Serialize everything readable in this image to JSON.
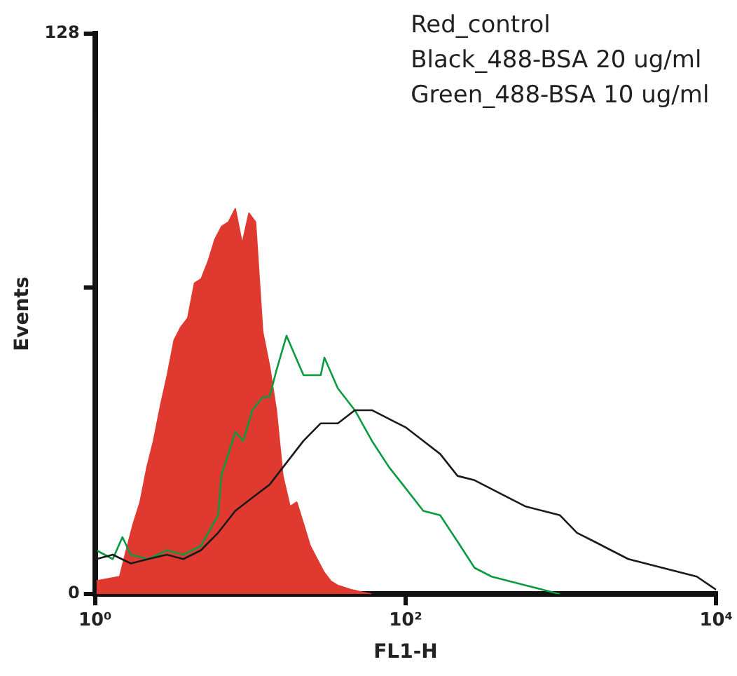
{
  "chart_data": {
    "type": "line",
    "xlabel": "FL1-H",
    "ylabel": "Events",
    "log": "x",
    "grid": false,
    "marker": "none",
    "xlim": [
      1,
      10000
    ],
    "xticks": [
      {
        "value": 1,
        "label": "10⁰"
      },
      {
        "value": 100,
        "label": "10²"
      },
      {
        "value": 10000,
        "label": "10⁴"
      }
    ],
    "ylim": [
      0,
      128
    ],
    "yticks": [
      0,
      {
        "value": 70,
        "label": null
      },
      128
    ],
    "annotations": [
      "Red_control",
      "Black_488-BSA 20 ug/ml",
      "Green_488-BSA 10 ug/ml"
    ],
    "series": [
      {
        "type": "area",
        "color": "#e03a30",
        "x": [
          1.02,
          1.44,
          1.59,
          1.76,
          1.95,
          2.16,
          2.38,
          2.64,
          2.92,
          3.23,
          3.57,
          3.95,
          4.37,
          4.83,
          5.35,
          5.91,
          6.54,
          7.24,
          8.0,
          8.86,
          9.8,
          10.8,
          12.0,
          13.3,
          14.7,
          16.2,
          18.0,
          19.9,
          22.0,
          24.3,
          26.9,
          29.8,
          32.9,
          36.4,
          44.6,
          60.2
        ],
        "values": [
          3,
          4,
          10,
          16,
          21,
          29,
          35,
          43,
          50,
          58,
          61,
          63,
          71,
          72,
          76,
          81,
          84,
          85,
          88,
          80,
          87,
          85,
          60,
          52,
          42,
          27,
          20,
          21,
          16,
          11,
          8,
          5,
          3,
          2,
          1,
          0
        ]
      },
      {
        "color": "#1a1a1a",
        "x": [
          1,
          1.02,
          1.3,
          1.7,
          2.2,
          2.9,
          3.7,
          4.8,
          6.2,
          8.0,
          10.3,
          13.3,
          17.1,
          22.0,
          28.4,
          36.6,
          47.1,
          60.7,
          78.2,
          101,
          130,
          167,
          216,
          278,
          358,
          461,
          594,
          766,
          987,
          1270,
          1640,
          2110,
          2720,
          4520,
          7510,
          10000
        ],
        "values": [
          110,
          8,
          9,
          7,
          8,
          9,
          8,
          10,
          14,
          19,
          22,
          25,
          30,
          35,
          39,
          39,
          42,
          42,
          40,
          38,
          35,
          32,
          27,
          26,
          24,
          22,
          20,
          19,
          18,
          14,
          12,
          10,
          8,
          6,
          4,
          1
        ]
      },
      {
        "color": "#0a9a40",
        "x": [
          1.02,
          1.3,
          1.5,
          1.7,
          2.2,
          2.9,
          3.7,
          4.8,
          6.2,
          6.5,
          8.0,
          9.0,
          10.3,
          12.0,
          13.3,
          14.7,
          17.1,
          22.0,
          28.4,
          30.0,
          36.6,
          47.1,
          60.7,
          78.2,
          101,
          130,
          167,
          216,
          278,
          358,
          461,
          594,
          766,
          987
        ],
        "values": [
          10,
          8,
          13,
          9,
          8,
          10,
          9,
          11,
          18,
          27,
          37,
          35,
          42,
          45,
          45,
          51,
          59,
          50,
          50,
          54,
          47,
          42,
          35,
          29,
          24,
          19,
          18,
          12,
          6,
          4,
          3,
          2,
          1,
          0
        ]
      }
    ]
  }
}
